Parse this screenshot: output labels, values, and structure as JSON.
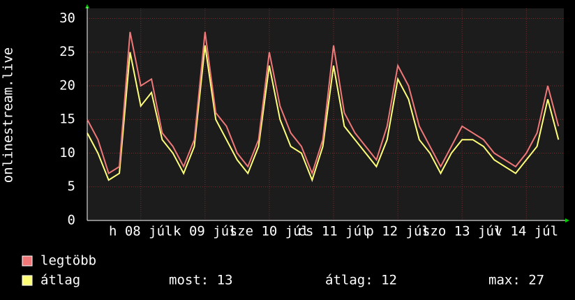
{
  "chart_data": {
    "type": "line",
    "ylabel": "onlinestream.live",
    "x": [
      0,
      4,
      8,
      12,
      16,
      20,
      24,
      28,
      32,
      36,
      40,
      44,
      48,
      52,
      56,
      60,
      64,
      68,
      72,
      76,
      80,
      84,
      88,
      92,
      96,
      100,
      104,
      108,
      112,
      116,
      120,
      124,
      128,
      132,
      136,
      140,
      144,
      148,
      152,
      156,
      160,
      164,
      168,
      172,
      176
    ],
    "series": [
      {
        "name": "legtöbb",
        "color": "#f07878",
        "values": [
          15,
          12,
          7,
          8,
          28,
          20,
          21,
          13,
          11,
          8,
          12,
          28,
          16,
          14,
          10,
          8,
          12,
          25,
          17,
          13,
          11,
          7,
          12,
          26,
          16,
          13,
          11,
          9,
          14,
          23,
          20,
          14,
          11,
          8,
          11,
          14,
          13,
          12,
          10,
          9,
          8,
          10,
          13,
          20,
          14
        ]
      },
      {
        "name": "átlag",
        "color": "#ffff78",
        "values": [
          13,
          10,
          6,
          7,
          25,
          17,
          19,
          12,
          10,
          7,
          11,
          26,
          15,
          12,
          9,
          7,
          11,
          23,
          15,
          11,
          10,
          6,
          11,
          23,
          14,
          12,
          10,
          8,
          12,
          21,
          18,
          12,
          10,
          7,
          10,
          12,
          12,
          11,
          9,
          8,
          7,
          9,
          11,
          18,
          12
        ]
      }
    ],
    "xlim": [
      0,
      178
    ],
    "xticks": [
      {
        "value": 20,
        "label": "h 08 júl"
      },
      {
        "value": 44,
        "label": "k 09 júl"
      },
      {
        "value": 68,
        "label": "sze 10 júl"
      },
      {
        "value": 92,
        "label": "cs 11 júl"
      },
      {
        "value": 116,
        "label": "p 12 júl"
      },
      {
        "value": 140,
        "label": "szo 13 júl"
      },
      {
        "value": 164,
        "label": "v 14 júl"
      }
    ],
    "ylim": [
      0,
      31.5
    ],
    "yticks": [
      0,
      5,
      10,
      15,
      20,
      25,
      30
    ],
    "grid": true,
    "stats": [
      "most: 13",
      "átlag: 12",
      "max: 27"
    ]
  }
}
